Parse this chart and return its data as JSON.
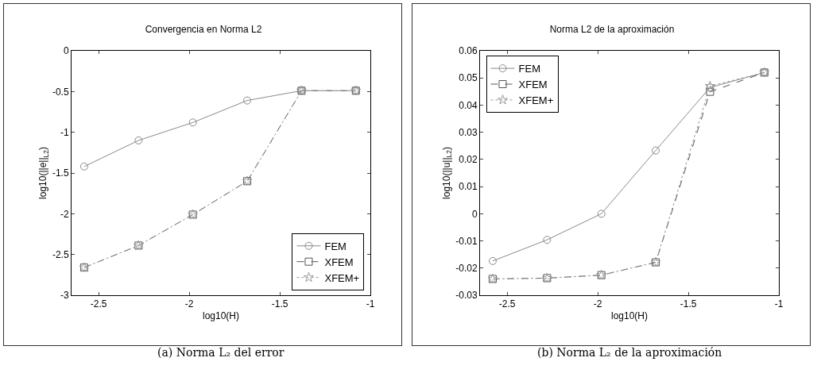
{
  "chart_data": [
    {
      "type": "line",
      "title": "Convergencia en Norma L2",
      "xlabel": "log10(H)",
      "ylabel": "log10(||e||$_{L2}$)",
      "annotations": [
        "(a) Norma L₂ del error"
      ],
      "x": [
        -2.58,
        -2.28,
        -1.98,
        -1.68,
        -1.38,
        -1.08
      ],
      "series": [
        {
          "name": "FEM",
          "color": "#8a8a8a",
          "marker": "circle",
          "line_style": "solid",
          "values": [
            -1.42,
            -1.1,
            -0.88,
            -0.61,
            -0.49,
            -0.49
          ]
        },
        {
          "name": "XFEM",
          "color": "#555555",
          "marker": "square",
          "line_style": "dashed",
          "values": [
            -2.66,
            -2.39,
            -2.01,
            -1.6,
            -0.49,
            -0.49
          ]
        },
        {
          "name": "XFEM+",
          "color": "#9a9a9a",
          "marker": "star",
          "line_style": "dotted",
          "values": [
            -2.66,
            -2.39,
            -2.01,
            -1.6,
            -0.49,
            -0.49
          ]
        }
      ],
      "xlim": [
        -2.65,
        -1
      ],
      "xticks": [
        -2.5,
        -2,
        -1.5,
        -1
      ],
      "ylim": [
        -3,
        0
      ],
      "yticks": [
        -3,
        -2.5,
        -2,
        -1.5,
        -1,
        -0.5,
        0
      ],
      "legend": "bottom right"
    },
    {
      "type": "line",
      "title": "Norma L2 de la aproximación",
      "xlabel": "log10(H)",
      "ylabel": "log10(||u||$_{L2}$)",
      "annotations": [
        "(b) Norma L₂ de la aproximación"
      ],
      "x": [
        -2.58,
        -2.28,
        -1.98,
        -1.68,
        -1.38,
        -1.08
      ],
      "series": [
        {
          "name": "FEM",
          "color": "#8a8a8a",
          "marker": "circle",
          "line_style": "solid",
          "values": [
            -0.0174,
            -0.0096,
            0,
            0.0233,
            0.0465,
            0.052
          ]
        },
        {
          "name": "XFEM",
          "color": "#555555",
          "marker": "square",
          "line_style": "dashed",
          "values": [
            -0.024,
            -0.0237,
            -0.0226,
            -0.0179,
            0.0449,
            0.052
          ]
        },
        {
          "name": "XFEM+",
          "color": "#9a9a9a",
          "marker": "star",
          "line_style": "dotted",
          "values": [
            -0.024,
            -0.0237,
            -0.0226,
            -0.0179,
            0.047,
            0.052
          ]
        }
      ],
      "xlim": [
        -2.65,
        -1
      ],
      "xticks": [
        -2.5,
        -2,
        -1.5,
        -1
      ],
      "ylim": [
        -0.03,
        0.06
      ],
      "yticks": [
        -0.03,
        -0.02,
        -0.01,
        0,
        0.01,
        0.02,
        0.03,
        0.04,
        0.05,
        0.06
      ],
      "legend": "top left"
    }
  ]
}
